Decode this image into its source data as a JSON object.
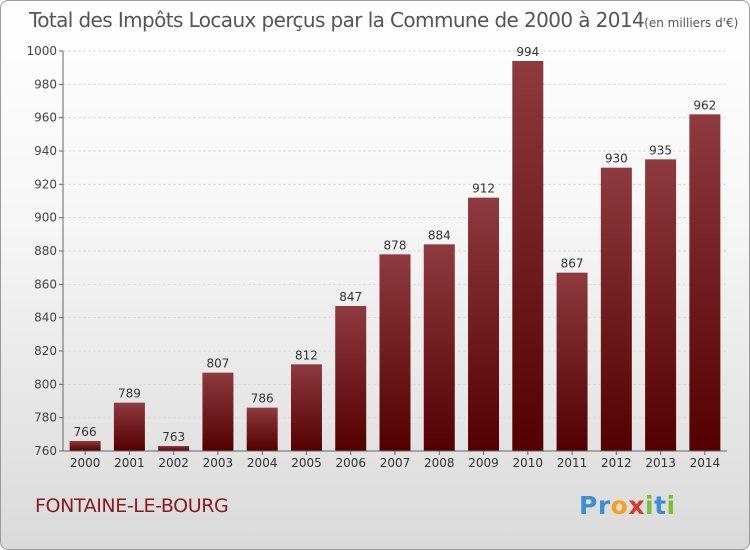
{
  "title": "Total des Impôts Locaux perçus par la Commune de 2000 à 2014",
  "title_unit": "(en milliers d'€)",
  "commune": "FONTAINE-LE-BOURG",
  "logo": {
    "letters": [
      "P",
      "r",
      "o",
      "x",
      "i",
      "t",
      "i"
    ],
    "colors": [
      "#3c8fd6",
      "#3c8fd6",
      "#f2a31b",
      "#d63a2a",
      "#7cbf2e",
      "#3c8fd6",
      "#7cbf2e"
    ]
  },
  "colors": {
    "bar_top": "#8e3a3e",
    "bar_bottom": "#540000",
    "grid": "#dddddd",
    "axis": "#666666"
  },
  "chart_data": {
    "type": "bar",
    "title": "Total des Impôts Locaux perçus par la Commune de 2000 à 2014",
    "xlabel": "",
    "ylabel": "",
    "categories": [
      "2000",
      "2001",
      "2002",
      "2003",
      "2004",
      "2005",
      "2006",
      "2007",
      "2008",
      "2009",
      "2010",
      "2011",
      "2012",
      "2013",
      "2014"
    ],
    "values": [
      766,
      789,
      763,
      807,
      786,
      812,
      847,
      878,
      884,
      912,
      994,
      867,
      930,
      935,
      962
    ],
    "ylim": [
      760,
      1000
    ],
    "yticks": [
      760,
      780,
      800,
      820,
      840,
      860,
      880,
      900,
      920,
      940,
      960,
      980,
      1000
    ],
    "grid": true
  }
}
